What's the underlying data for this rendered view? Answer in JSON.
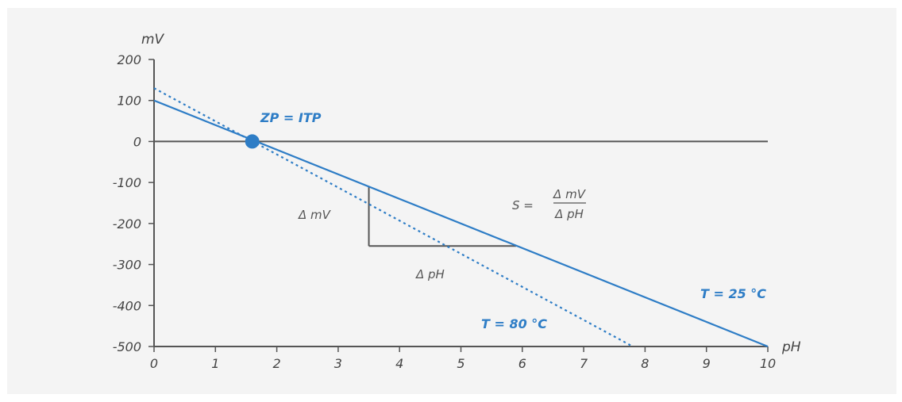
{
  "chart_data": {
    "type": "line",
    "xlabel": "pH",
    "ylabel": "mV",
    "xlim": [
      0,
      10
    ],
    "ylim": [
      -500,
      200
    ],
    "x_ticks": [
      "0",
      "1",
      "2",
      "3",
      "4",
      "5",
      "6",
      "7",
      "8",
      "9",
      "10"
    ],
    "y_ticks": [
      "200",
      "100",
      "0",
      "-100",
      "-200",
      "-300",
      "-400",
      "-500"
    ],
    "grid": false,
    "series": [
      {
        "name": "T = 25 °C",
        "style": "solid",
        "color": "#2e7dc6",
        "points": [
          [
            0,
            100
          ],
          [
            10,
            -500
          ]
        ]
      },
      {
        "name": "T = 80 °C",
        "style": "dotted",
        "color": "#2e7dc6",
        "points": [
          [
            0,
            130
          ],
          [
            7.8,
            -500
          ]
        ]
      }
    ],
    "annotations": {
      "isopotential_point": {
        "label": "ZP = ITP",
        "x": 1.6,
        "y": 0
      },
      "slope_triangle": {
        "x1": 3.5,
        "x2": 5.9,
        "y_top": -110,
        "y_bottom": -255
      },
      "delta_mv": "Δ mV",
      "delta_ph": "Δ pH",
      "slope_formula": {
        "lhs": "S =",
        "numerator": "Δ mV",
        "denominator": "Δ pH"
      }
    },
    "colors": {
      "axis": "#555555",
      "series": "#2e7dc6",
      "background": "#f4f4f4"
    }
  }
}
